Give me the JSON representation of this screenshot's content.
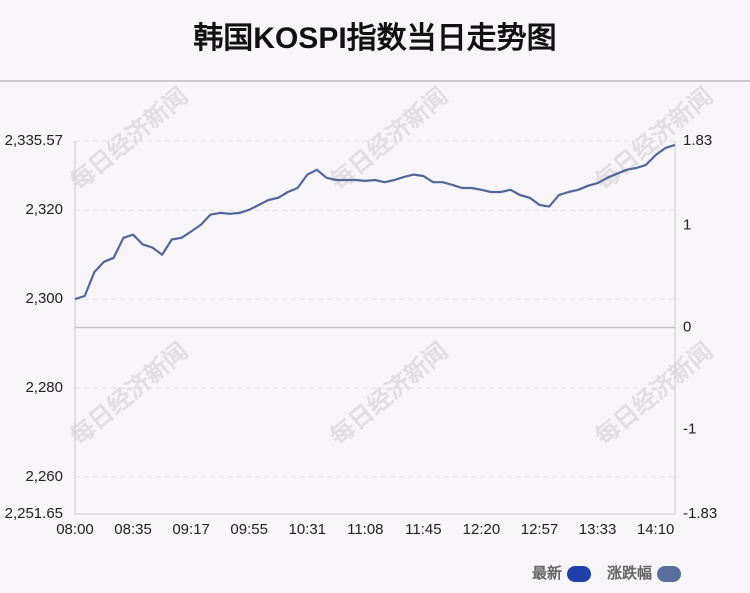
{
  "chart_data": {
    "type": "line",
    "title": "韩国KOSPI指数当日走势图",
    "watermark": "每日经济新闻",
    "categories": [
      "08:00",
      null,
      null,
      null,
      null,
      null,
      "08:35",
      null,
      null,
      null,
      null,
      null,
      "09:17",
      null,
      null,
      null,
      null,
      null,
      "09:55",
      null,
      null,
      null,
      null,
      null,
      "10:31",
      null,
      null,
      null,
      null,
      null,
      "11:08",
      null,
      null,
      null,
      null,
      null,
      "11:45",
      null,
      null,
      null,
      null,
      null,
      "12:20",
      null,
      null,
      null,
      null,
      null,
      "12:57",
      null,
      null,
      null,
      null,
      null,
      "13:33",
      null,
      null,
      null,
      null,
      null,
      "14:10",
      null,
      null
    ],
    "series": [
      {
        "color": "#51679a",
        "values": [
          2300.0,
          2300.7,
          2306.1,
          2308.4,
          2309.3,
          2313.8,
          2314.5,
          2312.3,
          2311.6,
          2310.0,
          2313.4,
          2313.8,
          2315.2,
          2316.7,
          2319.0,
          2319.4,
          2319.2,
          2319.4,
          2320.1,
          2321.2,
          2322.3,
          2322.8,
          2324.1,
          2325.0,
          2328.0,
          2329.1,
          2327.3,
          2326.8,
          2326.8,
          2326.8,
          2326.6,
          2326.8,
          2326.3,
          2326.8,
          2327.5,
          2328.0,
          2327.7,
          2326.3,
          2326.3,
          2325.7,
          2325.0,
          2325.0,
          2324.6,
          2324.1,
          2324.1,
          2324.6,
          2323.4,
          2322.8,
          2321.2,
          2320.8,
          2323.4,
          2324.1,
          2324.6,
          2325.5,
          2326.1,
          2327.3,
          2328.2,
          2329.1,
          2329.5,
          2330.2,
          2332.4,
          2334.0,
          2334.7
        ]
      }
    ],
    "legend": [
      {
        "label": "最新",
        "color": "#1e40a8"
      },
      {
        "label": "涨跌幅",
        "color": "#5b6f9f"
      }
    ],
    "ylim": [
      2251.65,
      2335.57
    ],
    "yticks": [
      {
        "value": 2335.57,
        "label": "2,335.57"
      },
      {
        "value": 2320,
        "label": "2,320"
      },
      {
        "value": 2300,
        "label": "2,300"
      },
      {
        "value": 2280,
        "label": "2,280"
      },
      {
        "value": 2260,
        "label": "2,260"
      },
      {
        "value": 2251.65,
        "label": "2,251.65"
      }
    ],
    "y2lim": [
      -1.83,
      1.83
    ],
    "y2ticks": [
      1.83,
      1,
      0,
      -1,
      -1.83
    ],
    "grid": true
  }
}
